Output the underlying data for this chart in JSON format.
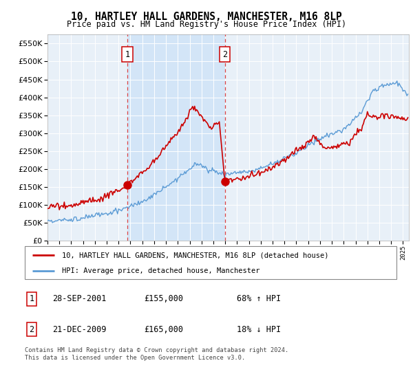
{
  "title": "10, HARTLEY HALL GARDENS, MANCHESTER, M16 8LP",
  "subtitle": "Price paid vs. HM Land Registry's House Price Index (HPI)",
  "legend_line1": "10, HARTLEY HALL GARDENS, MANCHESTER, M16 8LP (detached house)",
  "legend_line2": "HPI: Average price, detached house, Manchester",
  "sale1_date": "28-SEP-2001",
  "sale1_price": "£155,000",
  "sale1_hpi": "68% ↑ HPI",
  "sale1_x": 2001.75,
  "sale1_y": 155000,
  "sale2_date": "21-DEC-2009",
  "sale2_price": "£165,000",
  "sale2_hpi": "18% ↓ HPI",
  "sale2_x": 2009.97,
  "sale2_y": 165000,
  "hpi_color": "#5b9bd5",
  "price_color": "#cc0000",
  "vline_color": "#dd4444",
  "shade_color": "#d0e4f7",
  "ylim": [
    0,
    575000
  ],
  "xlim_start": 1995.0,
  "xlim_end": 2025.5,
  "footer": "Contains HM Land Registry data © Crown copyright and database right 2024.\nThis data is licensed under the Open Government Licence v3.0.",
  "background_color": "#e8f0f8",
  "yticks": [
    0,
    50000,
    100000,
    150000,
    200000,
    250000,
    300000,
    350000,
    400000,
    450000,
    500000,
    550000
  ]
}
